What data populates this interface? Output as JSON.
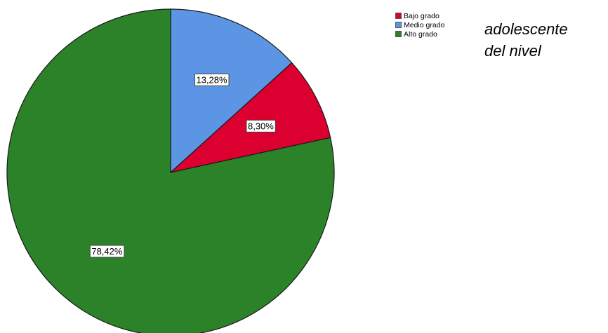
{
  "chart_data": {
    "type": "pie",
    "categories": [
      "Bajo grado",
      "Medio grado",
      "Alto grado"
    ],
    "values": [
      8.3,
      13.28,
      78.42
    ],
    "value_labels": [
      "8,30%",
      "13,28%",
      "78,42%"
    ],
    "colors": [
      "#dc0030",
      "#5b95e4",
      "#2c8229"
    ],
    "legend": {
      "placement": "top-right",
      "entries": [
        "Bajo grado",
        "Medio grado",
        "Alto grado"
      ]
    },
    "slice_order_clockwise_from_top": [
      "Medio grado",
      "Bajo grado",
      "Alto grado"
    ]
  },
  "side_text": {
    "line1": "adolescente",
    "line2": "del nivel"
  }
}
